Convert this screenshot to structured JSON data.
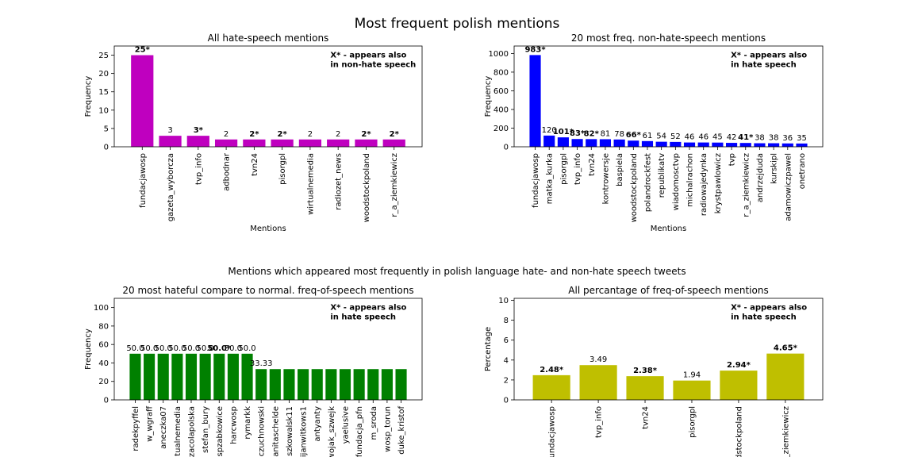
{
  "suptitle": "Most frequent polish mentions",
  "middle_title": "Mentions which appeared most frequently in polish language hate- and non-hate speech tweets",
  "chart_data": [
    {
      "type": "bar",
      "title": "All hate-speech mentions",
      "xlabel": "Mentions",
      "ylabel": "Frequency",
      "ylim": [
        0,
        27.5
      ],
      "yticks": [
        0,
        5,
        10,
        15,
        20,
        25
      ],
      "color": "#bf00bf",
      "note": [
        "X* - appears also",
        "in non-hate speech"
      ],
      "categories": [
        "fundacjawosp",
        "gazeta_wyborcza",
        "tvp_info",
        "adbodnar",
        "tvn24",
        "pisorgpl",
        "wirtualnemedia",
        "radiozet_news",
        "woodstockpoland",
        "r_a_ziemkiewicz"
      ],
      "values": [
        25,
        3,
        3,
        2,
        2,
        2,
        2,
        2,
        2,
        2
      ],
      "labels": [
        "25*",
        "3",
        "3*",
        "2",
        "2*",
        "2*",
        "2",
        "2",
        "2*",
        "2*"
      ],
      "bold": [
        true,
        false,
        true,
        false,
        true,
        true,
        false,
        false,
        true,
        true
      ]
    },
    {
      "type": "bar",
      "title": "20 most freq. non-hate-speech mentions",
      "xlabel": "Mentions",
      "ylabel": "Frequency",
      "ylim": [
        0,
        1080
      ],
      "yticks": [
        0,
        200,
        400,
        600,
        800,
        1000
      ],
      "color": "#0000ff",
      "note": [
        "X* - appears also",
        "in hate speech"
      ],
      "categories": [
        "fundacjawosp",
        "matka_kurka",
        "pisorgpl",
        "tvp_info",
        "tvn24",
        "kontrowersje",
        "baspiela",
        "woodstockpoland",
        "polandrockfest",
        "republikatv",
        "wiadomosctvp",
        "michalrachon",
        "radiowajedynka",
        "krystpawlowicz",
        "tvp",
        "r_a_ziemkiewicz",
        "andrzejduda",
        "kurskipl",
        "adamowiczpawel",
        "onetrano"
      ],
      "values": [
        983,
        120,
        101,
        83,
        82,
        81,
        78,
        66,
        61,
        54,
        52,
        46,
        46,
        45,
        42,
        41,
        38,
        38,
        36,
        35
      ],
      "labels": [
        "983*",
        "120",
        "101*",
        "83*",
        "82*",
        "81",
        "78",
        "66*",
        "61",
        "54",
        "52",
        "46",
        "46",
        "45",
        "42",
        "41*",
        "38",
        "38",
        "36",
        "35"
      ],
      "bold": [
        true,
        false,
        true,
        true,
        true,
        false,
        false,
        true,
        false,
        false,
        false,
        false,
        false,
        false,
        false,
        true,
        false,
        false,
        false,
        false
      ]
    },
    {
      "type": "bar",
      "title": "20 most hateful compare to normal. freq-of-speech mentions",
      "xlabel": "",
      "ylabel": "Frequency",
      "ylim": [
        0,
        110
      ],
      "yticks": [
        0,
        20,
        40,
        60,
        80,
        100
      ],
      "color": "#008000",
      "note": [
        "X* - appears also",
        "in hate speech"
      ],
      "categories": [
        "radekpyffel",
        "w_wgraff",
        "aneczka07",
        "tualnemedia",
        "zacolapolska",
        "stefan_bury",
        "spzabkowice",
        "harcwosp",
        "rymarkk",
        "czuchnowski",
        "anitaschelde",
        "szkowalsk11",
        "ijanwitkows1",
        "antyanty",
        "wojak_szwejk",
        "yaelusive",
        "fundacja_pfn",
        "m_sroda",
        "wosp_torun",
        "duke_kristof"
      ],
      "values": [
        50.0,
        50.0,
        50.0,
        50.0,
        50.0,
        50.0,
        50.0,
        50.0,
        50.0,
        33.33,
        33.33,
        33.33,
        33.33,
        33.33,
        33.33,
        33.33,
        33.33,
        33.33,
        33.33,
        33.33
      ],
      "labels": [
        "50.0",
        "50.0",
        "50.0",
        "50.0",
        "50.0",
        "50.0",
        "50.0*",
        "50.0",
        "50.0",
        "33.33",
        "",
        "",
        "",
        "",
        "",
        "",
        "",
        "",
        "",
        ""
      ],
      "bold": [
        false,
        false,
        false,
        false,
        false,
        false,
        true,
        false,
        false,
        false,
        false,
        false,
        false,
        false,
        false,
        false,
        false,
        false,
        false,
        false
      ]
    },
    {
      "type": "bar",
      "title": "All percantage of freq-of-speech mentions",
      "xlabel": "",
      "ylabel": "Percentage",
      "ylim": [
        0,
        10.2
      ],
      "yticks": [
        0,
        2,
        4,
        6,
        8,
        10
      ],
      "color": "#bfbf00",
      "note": [
        "X* - appears also",
        "in hate speech"
      ],
      "categories": [
        "fundacjawosp",
        "tvp_info",
        "tvn24",
        "pisorgpl",
        "woodstockpoland",
        "r_a_ziemkiewicz"
      ],
      "values": [
        2.48,
        3.49,
        2.38,
        1.94,
        2.94,
        4.65
      ],
      "labels": [
        "2.48*",
        "3.49",
        "2.38*",
        "1.94",
        "2.94*",
        "4.65*"
      ],
      "bold": [
        true,
        false,
        true,
        false,
        true,
        true
      ]
    }
  ]
}
